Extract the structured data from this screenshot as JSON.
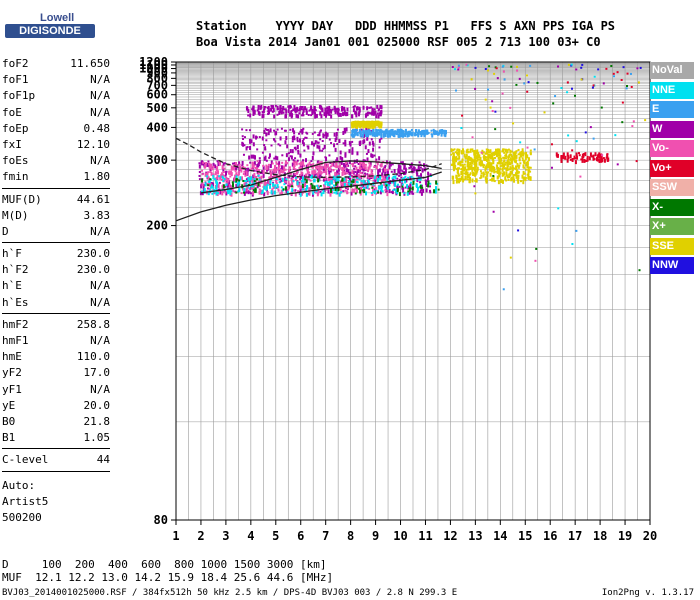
{
  "logo": {
    "brand": "Lowell",
    "product": "DIGISONDE"
  },
  "header": {
    "labels": "Station    YYYY DAY   DDD HHMMSS P1   FFS S AXN PPS IGA PS",
    "values": "Boa Vista 2014 Jan01 001 025000 RSF 005 2 713 100 03+ C0"
  },
  "params": [
    {
      "name": "foF2",
      "value": "11.650"
    },
    {
      "name": "foF1",
      "value": "N/A"
    },
    {
      "name": "foF1p",
      "value": "N/A"
    },
    {
      "name": "foE",
      "value": "N/A"
    },
    {
      "name": "foEp",
      "value": "0.48"
    },
    {
      "name": "fxI",
      "value": "12.10"
    },
    {
      "name": "foEs",
      "value": "N/A"
    },
    {
      "name": "fmin",
      "value": "1.80"
    },
    {
      "sep": true
    },
    {
      "name": "MUF(D)",
      "value": "44.61"
    },
    {
      "name": "M(D)",
      "value": "3.83"
    },
    {
      "name": "D",
      "value": "N/A"
    },
    {
      "sep": true
    },
    {
      "name": "h`F",
      "value": "230.0"
    },
    {
      "name": "h`F2",
      "value": "230.0"
    },
    {
      "name": "h`E",
      "value": "N/A"
    },
    {
      "name": "h`Es",
      "value": "N/A"
    },
    {
      "sep": true
    },
    {
      "name": "hmF2",
      "value": "258.8"
    },
    {
      "name": "hmF1",
      "value": "N/A"
    },
    {
      "name": "hmE",
      "value": "110.0"
    },
    {
      "name": "yF2",
      "value": "17.0"
    },
    {
      "name": "yF1",
      "value": "N/A"
    },
    {
      "name": "yE",
      "value": "20.0"
    },
    {
      "name": "B0",
      "value": "21.8"
    },
    {
      "name": "B1",
      "value": "1.05"
    },
    {
      "sep": true
    },
    {
      "name": "C-level",
      "value": "44"
    },
    {
      "sep": true
    }
  ],
  "auto": {
    "label": "Auto:",
    "artist": "Artist5",
    "version": "500200"
  },
  "footer": {
    "d_row": "D     100  200  400  600  800 1000 1500 3000 [km]",
    "muf_row": "MUF  12.1 12.2 13.0 14.2 15.9 18.4 25.6 44.6 [MHz]"
  },
  "credit": "BVJ03_2014001025000.RSF / 384fx512h 50 kHz 2.5 km / DPS-4D BVJ03 003 / 2.8 N 299.3 E",
  "app_version": "Ion2Png v. 1.3.17",
  "legend": [
    {
      "label": "NoVal",
      "color": "#a8a8a8"
    },
    {
      "label": "NNE",
      "color": "#00e0f0"
    },
    {
      "label": "E",
      "color": "#3aa0f0"
    },
    {
      "label": "W",
      "color": "#a000a8"
    },
    {
      "label": "Vo-",
      "color": "#f050b0"
    },
    {
      "label": "Vo+",
      "color": "#e00028"
    },
    {
      "label": "SSW",
      "color": "#f0b0a8"
    },
    {
      "label": "X-",
      "color": "#007800"
    },
    {
      "label": "X+",
      "color": "#68b048"
    },
    {
      "label": "SSE",
      "color": "#e0d000"
    },
    {
      "label": "NNW",
      "color": "#2010e0"
    }
  ],
  "chart_data": {
    "type": "scatter",
    "xlabel": "",
    "ylabel": "",
    "xlim": [
      1,
      20
    ],
    "ylim": [
      80,
      1200
    ],
    "x_ticks": [
      1,
      2,
      3,
      4,
      5,
      6,
      7,
      8,
      9,
      10,
      11,
      12,
      13,
      14,
      15,
      16,
      17,
      18,
      19,
      20
    ],
    "y_ticks": [
      80,
      200,
      300,
      400,
      500,
      600,
      700,
      800,
      900,
      1000,
      1100,
      1200
    ],
    "y_scale": "reciprocal",
    "grid": true,
    "legend_position": "right",
    "clusters": [
      {
        "direction": "W",
        "x": [
          1.9,
          11.2
        ],
        "y": [
          240,
          300
        ],
        "density": "high"
      },
      {
        "direction": "Vo-",
        "x": [
          2.0,
          9.5
        ],
        "y": [
          240,
          300
        ],
        "density": "high"
      },
      {
        "direction": "W",
        "x": [
          3.5,
          9.2
        ],
        "y": [
          300,
          400
        ],
        "density": "medium"
      },
      {
        "direction": "W",
        "x": [
          3.8,
          9.2
        ],
        "y": [
          460,
          520
        ],
        "density": "medium"
      },
      {
        "direction": "E",
        "x": [
          8.0,
          11.8
        ],
        "y": [
          375,
          395
        ],
        "density": "medium"
      },
      {
        "direction": "SSE",
        "x": [
          8.0,
          9.2
        ],
        "y": [
          410,
          430
        ],
        "density": "medium"
      },
      {
        "direction": "SSE",
        "x": [
          12.0,
          15.2
        ],
        "y": [
          260,
          330
        ],
        "density": "high"
      },
      {
        "direction": "Vo+",
        "x": [
          16.2,
          18.3
        ],
        "y": [
          300,
          320
        ],
        "density": "low"
      },
      {
        "direction": "NNE",
        "x": [
          2.0,
          11.5
        ],
        "y": [
          240,
          270
        ],
        "density": "medium"
      },
      {
        "direction": "X-",
        "x": [
          2.0,
          11.5
        ],
        "y": [
          240,
          265
        ],
        "density": "low"
      }
    ],
    "traces": [
      {
        "name": "",
        "style": "solid",
        "x": [
          1,
          2,
          3,
          4,
          5,
          6,
          7,
          8,
          9,
          10,
          11,
          11.65
        ],
        "y": [
          205,
          215,
          223,
          230,
          236,
          241,
          246,
          250,
          255,
          260,
          265,
          275
        ]
      },
      {
        "name": "",
        "style": "dashed",
        "x": [
          1,
          1.5,
          2,
          2.5,
          3,
          4,
          5,
          6,
          7,
          8,
          9,
          10,
          11,
          11.65
        ],
        "y": [
          360,
          340,
          320,
          305,
          292,
          278,
          270,
          266,
          265,
          266,
          268,
          272,
          280,
          292
        ]
      },
      {
        "name": "",
        "style": "solid",
        "x": [
          2,
          3,
          4,
          5,
          6,
          7,
          8,
          9,
          10,
          11,
          11.65
        ],
        "y": [
          240,
          245,
          252,
          265,
          280,
          295,
          298,
          296,
          292,
          288,
          282
        ]
      }
    ]
  }
}
